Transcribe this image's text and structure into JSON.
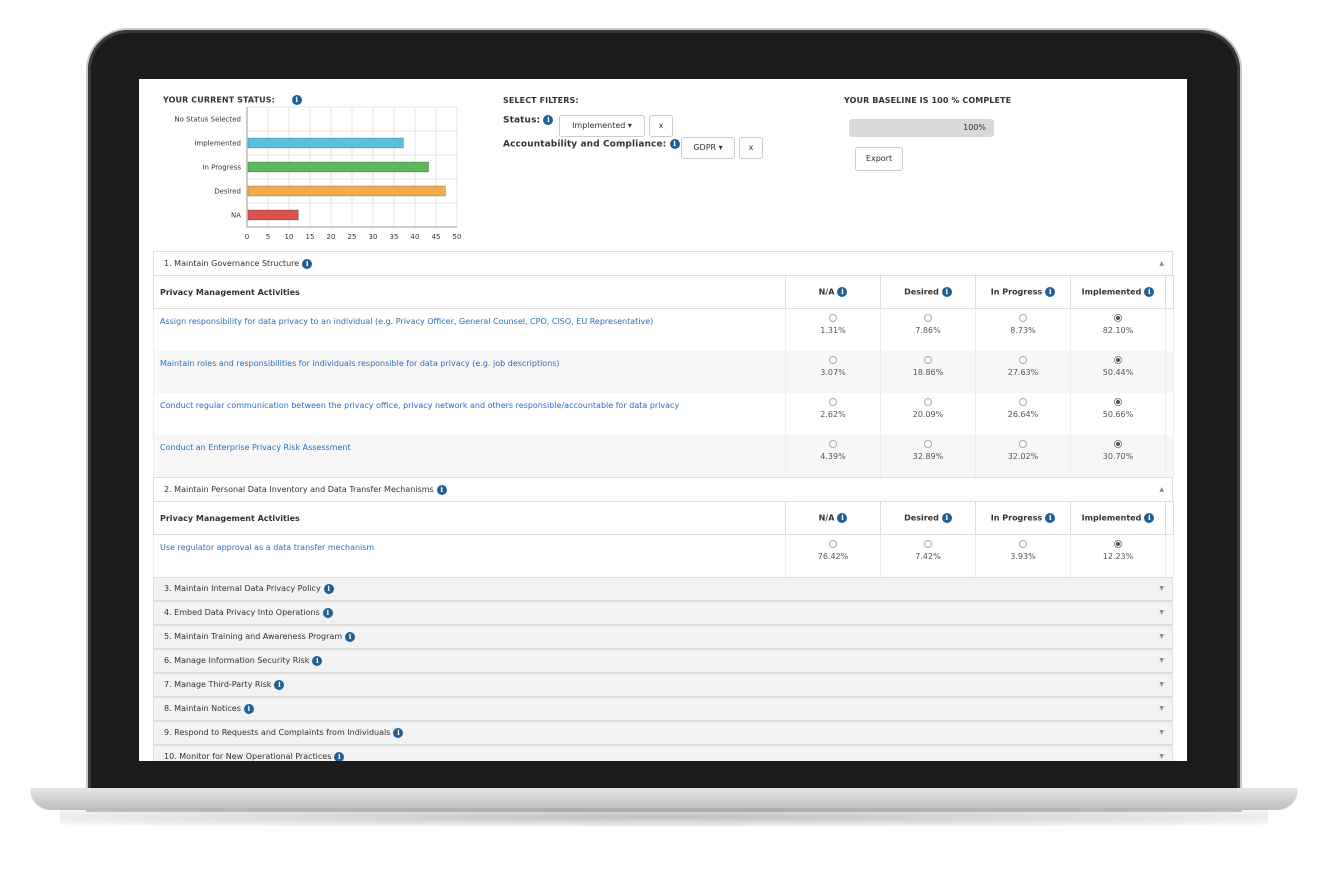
{
  "status": {
    "title": "YOUR CURRENT STATUS:",
    "info_icon": "info-icon"
  },
  "filters": {
    "title": "SELECT FILTERS:",
    "status_label": "Status:",
    "status_value": "Implemented",
    "accountability_label": "Accountability and Compliance:",
    "accountability_value": "GDPR",
    "clear_label": "x"
  },
  "baseline": {
    "title": "YOUR BASELINE IS 100 % COMPLETE",
    "progress_text": "100%",
    "progress_fraction": 1.0,
    "export_label": "Export"
  },
  "chart_data": {
    "type": "bar",
    "orientation": "horizontal",
    "categories": [
      "No Status Selected",
      "Implemented",
      "In Progress",
      "Desired",
      "NA"
    ],
    "values": [
      0,
      37,
      43,
      47,
      12
    ],
    "colors": [
      "#cccccc",
      "#5bc0de",
      "#5cb85c",
      "#f0ad4e",
      "#d9534f"
    ],
    "xticks": [
      "0",
      "5",
      "10",
      "15",
      "20",
      "25",
      "30",
      "35",
      "40",
      "45",
      "50"
    ],
    "xlim": [
      0,
      50
    ],
    "grid": true
  },
  "columns": [
    "Privacy Management Activities",
    "N/A",
    "Desired",
    "In Progress",
    "Implemented"
  ],
  "sections": [
    {
      "title": "1. Maintain Governance Structure",
      "expanded": true,
      "rows": [
        {
          "activity": "Assign responsibility for data privacy to an individual (e.g. Privacy Officer, General Counsel, CPO, CISO, EU Representative)",
          "na": "1.31%",
          "desired": "7.86%",
          "progress": "8.73%",
          "implemented": "82.10%"
        },
        {
          "activity": "Maintain roles and responsibilities for individuals responsible for data privacy (e.g. job descriptions)",
          "na": "3.07%",
          "desired": "18.86%",
          "progress": "27.63%",
          "implemented": "50.44%"
        },
        {
          "activity": "Conduct regular communication between the privacy office, privacy network and others responsible/accountable for data privacy",
          "na": "2.62%",
          "desired": "20.09%",
          "progress": "26.64%",
          "implemented": "50.66%"
        },
        {
          "activity": "Conduct an Enterprise Privacy Risk Assessment",
          "na": "4.39%",
          "desired": "32.89%",
          "progress": "32.02%",
          "implemented": "30.70%"
        }
      ]
    },
    {
      "title": "2. Maintain Personal Data Inventory and Data Transfer Mechanisms",
      "expanded": true,
      "rows": [
        {
          "activity": "Use regulator approval as a data transfer mechanism",
          "na": "76.42%",
          "desired": "7.42%",
          "progress": "3.93%",
          "implemented": "12.23%"
        }
      ]
    },
    {
      "title": "3. Maintain Internal Data Privacy Policy",
      "expanded": false
    },
    {
      "title": "4. Embed Data Privacy Into Operations",
      "expanded": false
    },
    {
      "title": "5. Maintain Training and Awareness Program",
      "expanded": false
    },
    {
      "title": "6. Manage Information Security Risk",
      "expanded": false
    },
    {
      "title": "7. Manage Third-Party Risk",
      "expanded": false
    },
    {
      "title": "8. Maintain Notices",
      "expanded": false
    },
    {
      "title": "9. Respond to Requests and Complaints from Individuals",
      "expanded": false
    },
    {
      "title": "10. Monitor for New Operational Practices",
      "expanded": false
    }
  ]
}
